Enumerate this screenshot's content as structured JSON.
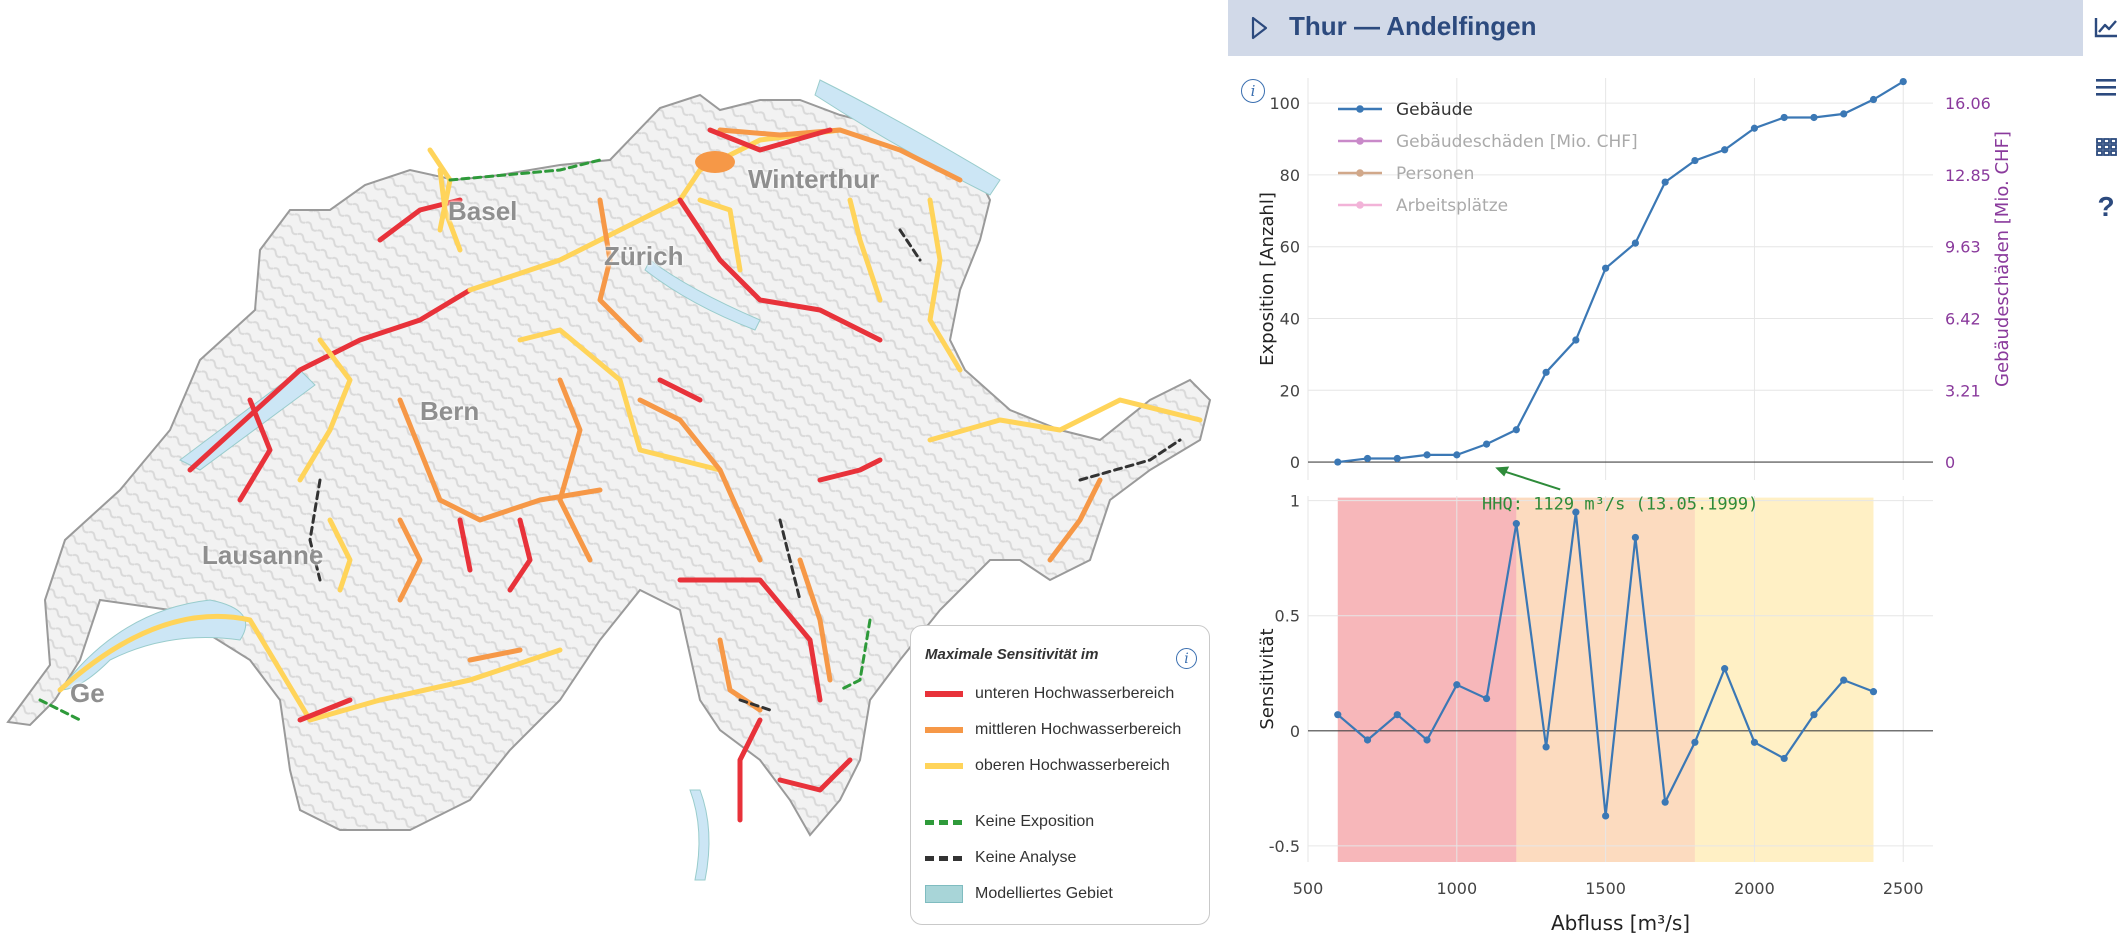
{
  "map": {
    "cities": [
      "Basel",
      "Zürich",
      "Winterthur",
      "Bern",
      "Lausanne",
      "Ge"
    ],
    "legend": {
      "title": "Maximale Sensitivität im",
      "info_icon": "info-icon",
      "items": [
        {
          "label": "unteren Hochwasserbereich",
          "color": "#e8323a",
          "style": "solid"
        },
        {
          "label": "mittleren Hochwasserbereich",
          "color": "#f69847",
          "style": "solid"
        },
        {
          "label": "oberen Hochwasserbereich",
          "color": "#ffd45a",
          "style": "solid"
        },
        {
          "label": "Keine Exposition",
          "color": "#2e9a3a",
          "style": "dashed"
        },
        {
          "label": "Keine Analyse",
          "color": "#333333",
          "style": "dashed"
        },
        {
          "label": "Modelliertes Gebiet",
          "color": "#a8d5d8",
          "style": "area"
        }
      ]
    }
  },
  "panel": {
    "title": "Thur — Andelfingen",
    "toolbar": [
      "chart-icon",
      "menu-icon",
      "grid-icon",
      "help-icon"
    ],
    "help_label": "?",
    "info_label": "i"
  },
  "chart_data": [
    {
      "type": "line",
      "title": "",
      "xlabel": "",
      "ylabel": "Exposition [Anzahl]",
      "y2label": "Gebäudeschäden [Mio. CHF]",
      "xlim": [
        500,
        2600
      ],
      "ylim": [
        -5,
        107
      ],
      "yticks": [
        0,
        20,
        40,
        60,
        80,
        100
      ],
      "y2ticks": [
        "0",
        "3.21",
        "6.42",
        "9.63",
        "12.85",
        "16.06"
      ],
      "legend": [
        {
          "name": "Gebäude",
          "color": "#3b78b5",
          "active": true
        },
        {
          "name": "Gebäudeschäden [Mio. CHF]",
          "color": "#c98ac9",
          "active": false
        },
        {
          "name": "Personen",
          "color": "#d1a88a",
          "active": false
        },
        {
          "name": "Arbeitsplätze",
          "color": "#f2b3d8",
          "active": false
        }
      ],
      "series": [
        {
          "name": "Gebäude",
          "x": [
            600,
            700,
            800,
            900,
            1000,
            1100,
            1200,
            1300,
            1400,
            1500,
            1600,
            1700,
            1800,
            1900,
            2000,
            2100,
            2200,
            2300,
            2400,
            2500
          ],
          "y": [
            0,
            1,
            1,
            2,
            2,
            5,
            9,
            25,
            34,
            54,
            61,
            78,
            84,
            87,
            93,
            96,
            96,
            97,
            101,
            106
          ]
        }
      ],
      "annotation": {
        "text": "HHQ: 1129 m³/s (13.05.1999)",
        "x": 1129,
        "color": "#2e8b3a"
      }
    },
    {
      "type": "line",
      "title": "",
      "xlabel": "Abfluss [m³/s]",
      "ylabel": "Sensitivität",
      "xlim": [
        500,
        2600
      ],
      "ylim": [
        -0.57,
        1.02
      ],
      "xticks": [
        500,
        1000,
        1500,
        2000,
        2500
      ],
      "yticks": [
        -0.5,
        0,
        0.5,
        1
      ],
      "bands": [
        {
          "from": 600,
          "to": 1200,
          "color": "#e8323a",
          "label": "unteren Hochwasserbereich"
        },
        {
          "from": 1200,
          "to": 1800,
          "color": "#f69847",
          "label": "mittleren Hochwasserbereich"
        },
        {
          "from": 1800,
          "to": 2400,
          "color": "#ffd45a",
          "label": "oberen Hochwasserbereich"
        }
      ],
      "series": [
        {
          "name": "Sensitivität",
          "x": [
            600,
            700,
            800,
            900,
            1000,
            1100,
            1200,
            1300,
            1400,
            1500,
            1600,
            1700,
            1800,
            1900,
            2000,
            2100,
            2200,
            2300,
            2400
          ],
          "y": [
            0.07,
            -0.04,
            0.07,
            -0.04,
            0.2,
            0.14,
            0.9,
            -0.07,
            0.95,
            -0.37,
            0.84,
            -0.31,
            -0.05,
            0.27,
            -0.05,
            -0.12,
            0.07,
            0.22,
            0.17
          ]
        }
      ]
    }
  ]
}
